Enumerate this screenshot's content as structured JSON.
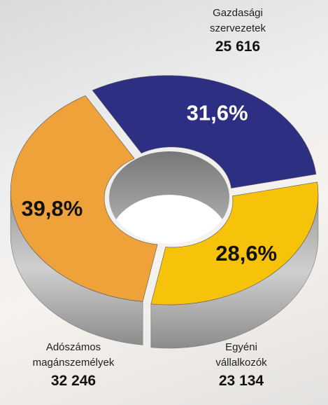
{
  "chart_data": {
    "type": "pie",
    "categories": [
      "Gazdasági szervezetek",
      "Egyéni vállalkozók",
      "Adószámos magánszemélyek"
    ],
    "values": [
      31.6,
      28.6,
      39.8
    ],
    "value_labels": [
      "31,6%",
      "28,6%",
      "39,8%"
    ],
    "counts": [
      25616,
      23134,
      32246
    ],
    "count_labels": [
      "25 616",
      "23 134",
      "32 246"
    ],
    "colors": [
      "#2d2f82",
      "#f6c20a",
      "#f0a23a"
    ],
    "donut": true,
    "three_d": true
  }
}
